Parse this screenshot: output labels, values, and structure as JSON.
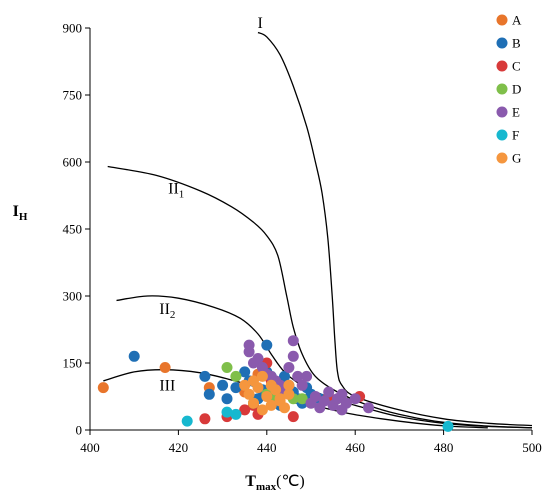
{
  "chart_data": {
    "type": "scatter",
    "title": "",
    "xlabel": {
      "main": "T",
      "sub": "max",
      "unit": "(℃)"
    },
    "ylabel": {
      "main": "I",
      "sub": "H"
    },
    "xlim": [
      400,
      500
    ],
    "ylim": [
      0,
      900
    ],
    "xticks": [
      400,
      420,
      440,
      460,
      480,
      500
    ],
    "yticks": [
      0,
      150,
      300,
      450,
      600,
      750,
      900
    ],
    "grid": false,
    "legend_position": "top-right",
    "curves": [
      {
        "name": "I",
        "label_main": "I",
        "label_sub": "",
        "label_at": [
          438.5,
          900
        ],
        "points": [
          [
            438,
            890
          ],
          [
            440,
            880
          ],
          [
            443,
            840
          ],
          [
            446,
            770
          ],
          [
            449,
            680
          ],
          [
            451,
            600
          ],
          [
            452.5,
            530
          ],
          [
            453.8,
            430
          ],
          [
            454.8,
            300
          ],
          [
            455.4,
            200
          ],
          [
            456,
            130
          ],
          [
            457,
            100
          ],
          [
            460,
            75
          ],
          [
            470,
            45
          ],
          [
            480,
            25
          ],
          [
            490,
            15
          ],
          [
            500,
            10
          ]
        ]
      },
      {
        "name": "II1",
        "label_main": "II",
        "label_sub": "1",
        "label_at": [
          419.5,
          530
        ],
        "points": [
          [
            404,
            590
          ],
          [
            415,
            570
          ],
          [
            425,
            535
          ],
          [
            432,
            500
          ],
          [
            437,
            465
          ],
          [
            440,
            435
          ],
          [
            442.5,
            390
          ],
          [
            444.5,
            300
          ],
          [
            446,
            230
          ],
          [
            448,
            170
          ],
          [
            451,
            120
          ],
          [
            456,
            85
          ],
          [
            463,
            55
          ],
          [
            470,
            35
          ],
          [
            478,
            20
          ],
          [
            488,
            10
          ],
          [
            500,
            5
          ]
        ]
      },
      {
        "name": "II2",
        "label_main": "II",
        "label_sub": "2",
        "label_at": [
          417.5,
          260
        ],
        "points": [
          [
            406,
            290
          ],
          [
            413,
            300
          ],
          [
            420,
            295
          ],
          [
            428,
            275
          ],
          [
            434,
            250
          ],
          [
            438,
            215
          ],
          [
            441,
            170
          ],
          [
            444,
            130
          ],
          [
            448,
            100
          ],
          [
            455,
            70
          ],
          [
            462,
            50
          ],
          [
            470,
            30
          ],
          [
            480,
            15
          ],
          [
            490,
            8
          ],
          [
            500,
            5
          ]
        ]
      },
      {
        "name": "III",
        "label_main": "III",
        "label_sub": "",
        "label_at": [
          417.5,
          88
        ],
        "points": [
          [
            403,
            110
          ],
          [
            410,
            130
          ],
          [
            417,
            135
          ],
          [
            425,
            128
          ],
          [
            432,
            112
          ],
          [
            438,
            95
          ],
          [
            444,
            75
          ],
          [
            450,
            57
          ],
          [
            458,
            38
          ],
          [
            466,
            25
          ],
          [
            474,
            15
          ],
          [
            482,
            8
          ],
          [
            490,
            5
          ]
        ]
      }
    ],
    "series": [
      {
        "name": "A",
        "color": "#e8752b",
        "points": [
          [
            403,
            95
          ],
          [
            417,
            140
          ],
          [
            427,
            95
          ],
          [
            435,
            85
          ],
          [
            438,
            125
          ]
        ]
      },
      {
        "name": "B",
        "color": "#1f6fb5",
        "points": [
          [
            410,
            165
          ],
          [
            426,
            120
          ],
          [
            427,
            80
          ],
          [
            430,
            100
          ],
          [
            431,
            70
          ],
          [
            433,
            95
          ],
          [
            435,
            130
          ],
          [
            436,
            110
          ],
          [
            437,
            60
          ],
          [
            438,
            70
          ],
          [
            439,
            90
          ],
          [
            440,
            190
          ],
          [
            440,
            130
          ],
          [
            441,
            120
          ],
          [
            442,
            85
          ],
          [
            443,
            55
          ],
          [
            444,
            120
          ],
          [
            445,
            100
          ],
          [
            446,
            85
          ],
          [
            447,
            70
          ],
          [
            448,
            60
          ],
          [
            449,
            95
          ],
          [
            450,
            80
          ],
          [
            452,
            70
          ]
        ]
      },
      {
        "name": "C",
        "color": "#d83a3a",
        "points": [
          [
            426,
            25
          ],
          [
            431,
            30
          ],
          [
            435,
            45
          ],
          [
            437,
            55
          ],
          [
            438,
            35
          ],
          [
            440,
            150
          ],
          [
            441,
            110
          ],
          [
            446,
            30
          ],
          [
            454,
            75
          ],
          [
            461,
            75
          ]
        ]
      },
      {
        "name": "D",
        "color": "#7fbf4a",
        "points": [
          [
            431,
            140
          ],
          [
            433,
            120
          ],
          [
            437,
            60
          ],
          [
            440,
            80
          ],
          [
            442,
            70
          ],
          [
            446,
            70
          ],
          [
            448,
            70
          ]
        ]
      },
      {
        "name": "E",
        "color": "#8a5aad",
        "points": [
          [
            436,
            190
          ],
          [
            436,
            175
          ],
          [
            437,
            150
          ],
          [
            438,
            160
          ],
          [
            439,
            140
          ],
          [
            440,
            125
          ],
          [
            441,
            120
          ],
          [
            442,
            110
          ],
          [
            443,
            100
          ],
          [
            444,
            90
          ],
          [
            445,
            140
          ],
          [
            446,
            200
          ],
          [
            446,
            165
          ],
          [
            447,
            120
          ],
          [
            448,
            100
          ],
          [
            449,
            120
          ],
          [
            450,
            60
          ],
          [
            451,
            75
          ],
          [
            452,
            50
          ],
          [
            453,
            65
          ],
          [
            454,
            85
          ],
          [
            455,
            55
          ],
          [
            456,
            70
          ],
          [
            457,
            45
          ],
          [
            457,
            80
          ],
          [
            458,
            60
          ],
          [
            460,
            70
          ],
          [
            463,
            50
          ]
        ]
      },
      {
        "name": "F",
        "color": "#17b8cf",
        "points": [
          [
            422,
            20
          ],
          [
            431,
            40
          ],
          [
            433,
            35
          ],
          [
            481,
            8
          ]
        ]
      },
      {
        "name": "G",
        "color": "#f5963e",
        "points": [
          [
            435,
            100
          ],
          [
            436,
            80
          ],
          [
            437,
            60
          ],
          [
            438,
            95
          ],
          [
            439,
            45
          ],
          [
            440,
            75
          ],
          [
            441,
            55
          ],
          [
            442,
            90
          ],
          [
            443,
            65
          ],
          [
            444,
            50
          ],
          [
            445,
            80
          ],
          [
            445,
            100
          ],
          [
            437,
            110
          ],
          [
            439,
            120
          ],
          [
            441,
            100
          ],
          [
            443,
            70
          ]
        ]
      }
    ]
  }
}
